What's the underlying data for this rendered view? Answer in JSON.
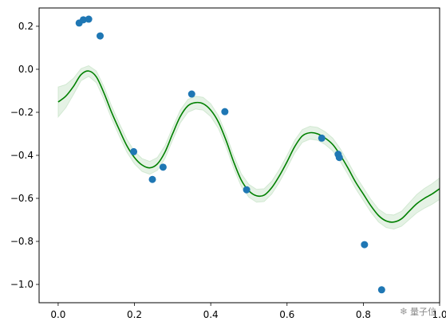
{
  "chart_data": {
    "type": "scatter",
    "title": "",
    "xlabel": "",
    "ylabel": "",
    "xlim": [
      -0.05,
      1.0
    ],
    "ylim": [
      -1.085,
      0.285
    ],
    "grid": false,
    "x_ticks": [
      0.0,
      0.2,
      0.4,
      0.6,
      0.8,
      1.0
    ],
    "x_tick_labels": [
      "0.0",
      "0.2",
      "0.4",
      "0.6",
      "0.8",
      "1.0"
    ],
    "y_ticks": [
      0.2,
      0.0,
      -0.2,
      -0.4,
      -0.6,
      -0.8,
      -1.0
    ],
    "y_tick_labels": [
      "0.2",
      "0.0",
      "−0.2",
      "−0.4",
      "−0.6",
      "−0.8",
      "−1.0"
    ],
    "colors": {
      "points": "#1f77b4",
      "line": "#008000",
      "band_fill": "#008000",
      "band_opacity": 0.1
    },
    "scatter_points": {
      "x": [
        0.055,
        0.066,
        0.08,
        0.11,
        0.198,
        0.247,
        0.275,
        0.35,
        0.437,
        0.494,
        0.691,
        0.734,
        0.737,
        0.803,
        0.848
      ],
      "y": [
        0.215,
        0.23,
        0.233,
        0.155,
        -0.383,
        -0.512,
        -0.455,
        -0.115,
        -0.197,
        -0.56,
        -0.32,
        -0.395,
        -0.41,
        -0.815,
        -1.025
      ]
    },
    "mean_curve": {
      "x": [
        0.0,
        0.02,
        0.04,
        0.06,
        0.08,
        0.1,
        0.12,
        0.14,
        0.16,
        0.18,
        0.2,
        0.22,
        0.24,
        0.26,
        0.28,
        0.3,
        0.32,
        0.34,
        0.36,
        0.38,
        0.4,
        0.42,
        0.44,
        0.46,
        0.48,
        0.5,
        0.52,
        0.54,
        0.56,
        0.58,
        0.6,
        0.62,
        0.64,
        0.66,
        0.68,
        0.7,
        0.72,
        0.74,
        0.76,
        0.78,
        0.8,
        0.82,
        0.84,
        0.86,
        0.88,
        0.9,
        0.92,
        0.94,
        0.96,
        0.98,
        1.0
      ],
      "y": [
        -0.152,
        -0.125,
        -0.08,
        -0.025,
        -0.008,
        -0.035,
        -0.11,
        -0.2,
        -0.28,
        -0.355,
        -0.41,
        -0.445,
        -0.458,
        -0.44,
        -0.385,
        -0.3,
        -0.22,
        -0.17,
        -0.155,
        -0.16,
        -0.19,
        -0.245,
        -0.33,
        -0.43,
        -0.515,
        -0.565,
        -0.588,
        -0.585,
        -0.55,
        -0.495,
        -0.43,
        -0.36,
        -0.31,
        -0.295,
        -0.3,
        -0.32,
        -0.35,
        -0.4,
        -0.46,
        -0.525,
        -0.58,
        -0.635,
        -0.68,
        -0.705,
        -0.71,
        -0.695,
        -0.66,
        -0.625,
        -0.6,
        -0.58,
        -0.555
      ]
    },
    "band_half_width": {
      "x": [
        0.0,
        0.05,
        0.08,
        0.12,
        0.2,
        0.3,
        0.4,
        0.5,
        0.6,
        0.7,
        0.8,
        0.85,
        0.9,
        0.95,
        1.0
      ],
      "y": [
        0.07,
        0.03,
        0.025,
        0.03,
        0.03,
        0.03,
        0.03,
        0.03,
        0.03,
        0.03,
        0.03,
        0.03,
        0.035,
        0.045,
        0.05
      ]
    }
  },
  "watermark": {
    "icon": "wechat-icon",
    "text": "量子位"
  }
}
